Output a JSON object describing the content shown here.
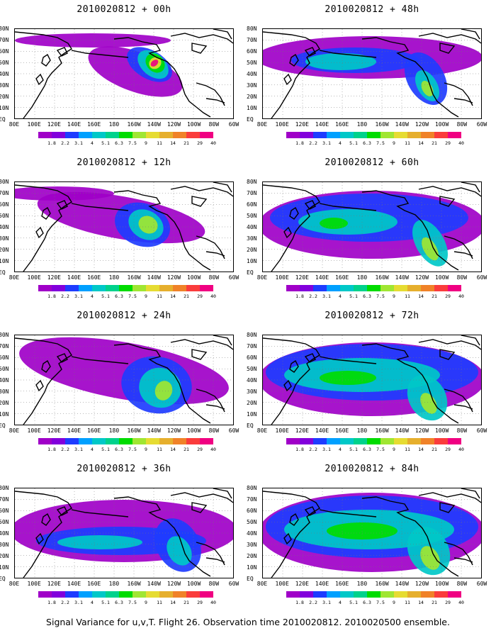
{
  "panels": [
    {
      "title": "2010020812 + 00h"
    },
    {
      "title": "2010020812 + 48h"
    },
    {
      "title": "2010020812 + 12h"
    },
    {
      "title": "2010020812 + 60h"
    },
    {
      "title": "2010020812 + 24h"
    },
    {
      "title": "2010020812 + 72h"
    },
    {
      "title": "2010020812 + 36h"
    },
    {
      "title": "2010020812 + 84h"
    }
  ],
  "latitude_labels": [
    "80N",
    "70N",
    "60N",
    "50N",
    "40N",
    "30N",
    "20N",
    "10N",
    "EQ"
  ],
  "longitude_labels": [
    "80E",
    "100E",
    "120E",
    "140E",
    "160E",
    "180",
    "160W",
    "140W",
    "120W",
    "100W",
    "80W",
    "60W"
  ],
  "colorbar": {
    "labels": [
      "1.8",
      "2.2",
      "3.1",
      "4",
      "5.1",
      "6.3",
      "7.5",
      "9",
      "11",
      "14",
      "21",
      "29",
      "40"
    ],
    "colors": [
      "#a000c8",
      "#8200dc",
      "#1e3cff",
      "#00a0ff",
      "#00c8c8",
      "#00d28c",
      "#00dc00",
      "#a0e632",
      "#e6dc32",
      "#e6af2d",
      "#f08228",
      "#fa3c3c",
      "#f00082"
    ]
  },
  "caption": "Signal Variance for u,v,T. Flight 26. Observation time 2010020812. 2010020500 ensemble."
}
